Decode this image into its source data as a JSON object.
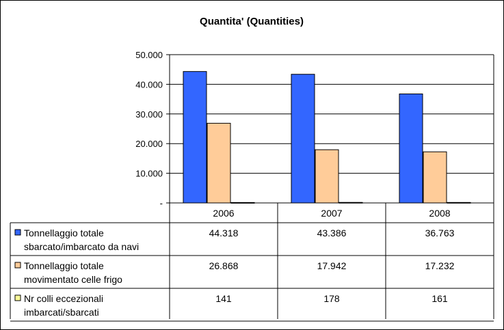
{
  "chart_data": {
    "type": "bar",
    "title": "Quantita' (Quantities)",
    "categories": [
      "2006",
      "2007",
      "2008"
    ],
    "ylim": [
      0,
      50000
    ],
    "yticks": [
      0,
      10000,
      20000,
      30000,
      40000,
      50000
    ],
    "ytick_labels": [
      "-",
      "10.000",
      "20.000",
      "30.000",
      "40.000",
      "50.000"
    ],
    "grid": true,
    "legend": "data table below plot",
    "series": [
      {
        "name_lines": [
          "Tonnellaggio totale",
          "sbarcato/imbarcato da navi"
        ],
        "color": "#3366FF",
        "values": [
          44318,
          43386,
          36763
        ],
        "labels": [
          "44.318",
          "43.386",
          "36.763"
        ]
      },
      {
        "name_lines": [
          "Tonnellaggio totale",
          "movimentato celle frigo"
        ],
        "color": "#FFCC99",
        "values": [
          26868,
          17942,
          17232
        ],
        "labels": [
          "26.868",
          "17.942",
          "17.232"
        ]
      },
      {
        "name_lines": [
          "Nr colli eccezionali",
          "imbarcati/sbarcati"
        ],
        "color": "#FFFF99",
        "values": [
          141,
          178,
          161
        ],
        "labels": [
          "141",
          "178",
          "161"
        ]
      }
    ]
  }
}
